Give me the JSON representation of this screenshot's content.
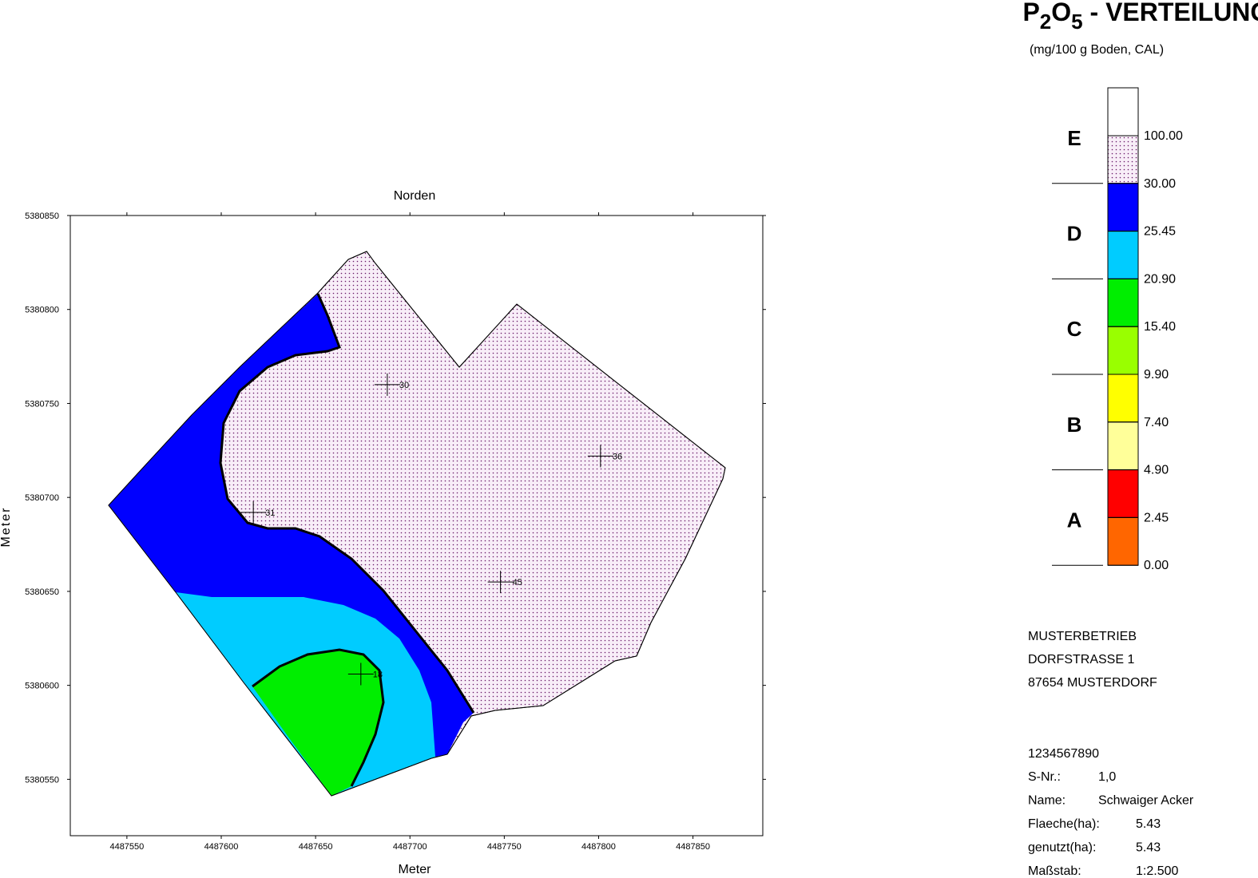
{
  "map": {
    "top_label": "Norden",
    "x_label": "Meter",
    "y_label": "Meter",
    "xlim": [
      4487520,
      4487887
    ],
    "ylim": [
      5380520,
      5380850
    ],
    "xticks": [
      4487550,
      4487600,
      4487650,
      4487700,
      4487750,
      4487800,
      4487850
    ],
    "yticks": [
      5380850,
      5380800,
      5380750,
      5380700,
      5380650,
      5380600,
      5380550
    ],
    "samples": [
      {
        "x": 4487688,
        "y": 5380760,
        "value": 30
      },
      {
        "x": 4487801,
        "y": 5380722,
        "value": 36
      },
      {
        "x": 4487617,
        "y": 5380692,
        "value": 31
      },
      {
        "x": 4487748,
        "y": 5380655,
        "value": 45
      },
      {
        "x": 4487674,
        "y": 5380606,
        "value": 18
      }
    ]
  },
  "legend": {
    "title_parts": [
      "P",
      "2",
      "O",
      "5",
      " - VERTEILUNG"
    ],
    "subtitle": "(mg/100 g Boden, CAL)",
    "breaks": [
      {
        "value": 100,
        "label": "100.00"
      },
      {
        "value": 30,
        "label": "30.00"
      },
      {
        "value": 25.45,
        "label": "25.45"
      },
      {
        "value": 20.9,
        "label": "20.90"
      },
      {
        "value": 15.4,
        "label": "15.40"
      },
      {
        "value": 9.9,
        "label": "9.90"
      },
      {
        "value": 7.4,
        "label": "7.40"
      },
      {
        "value": 4.9,
        "label": "4.90"
      },
      {
        "value": 2.45,
        "label": "2.45"
      },
      {
        "value": 0,
        "label": "0.00"
      }
    ],
    "colors": [
      "#ffffff",
      "dotted",
      "#0000ff",
      "#00ccff",
      "#00ee00",
      "#99ff00",
      "#ffff00",
      "#ffff99",
      "#ff0000",
      "#ff6600"
    ],
    "classes": [
      "E",
      "D",
      "C",
      "B",
      "A"
    ]
  },
  "info": {
    "address": [
      "MUSTERBETRIEB",
      "DORFSTRASSE 1",
      "87654 MUSTERDORF"
    ],
    "id": "1234567890",
    "rows": [
      [
        "S-Nr.:",
        "1,0"
      ],
      [
        "Name:",
        "Schwaiger Acker"
      ],
      [
        "Flaeche(ha):",
        "5.43"
      ],
      [
        "genutzt(ha):",
        "5.43"
      ],
      [
        "Maßstab:",
        "1:2.500"
      ]
    ]
  }
}
